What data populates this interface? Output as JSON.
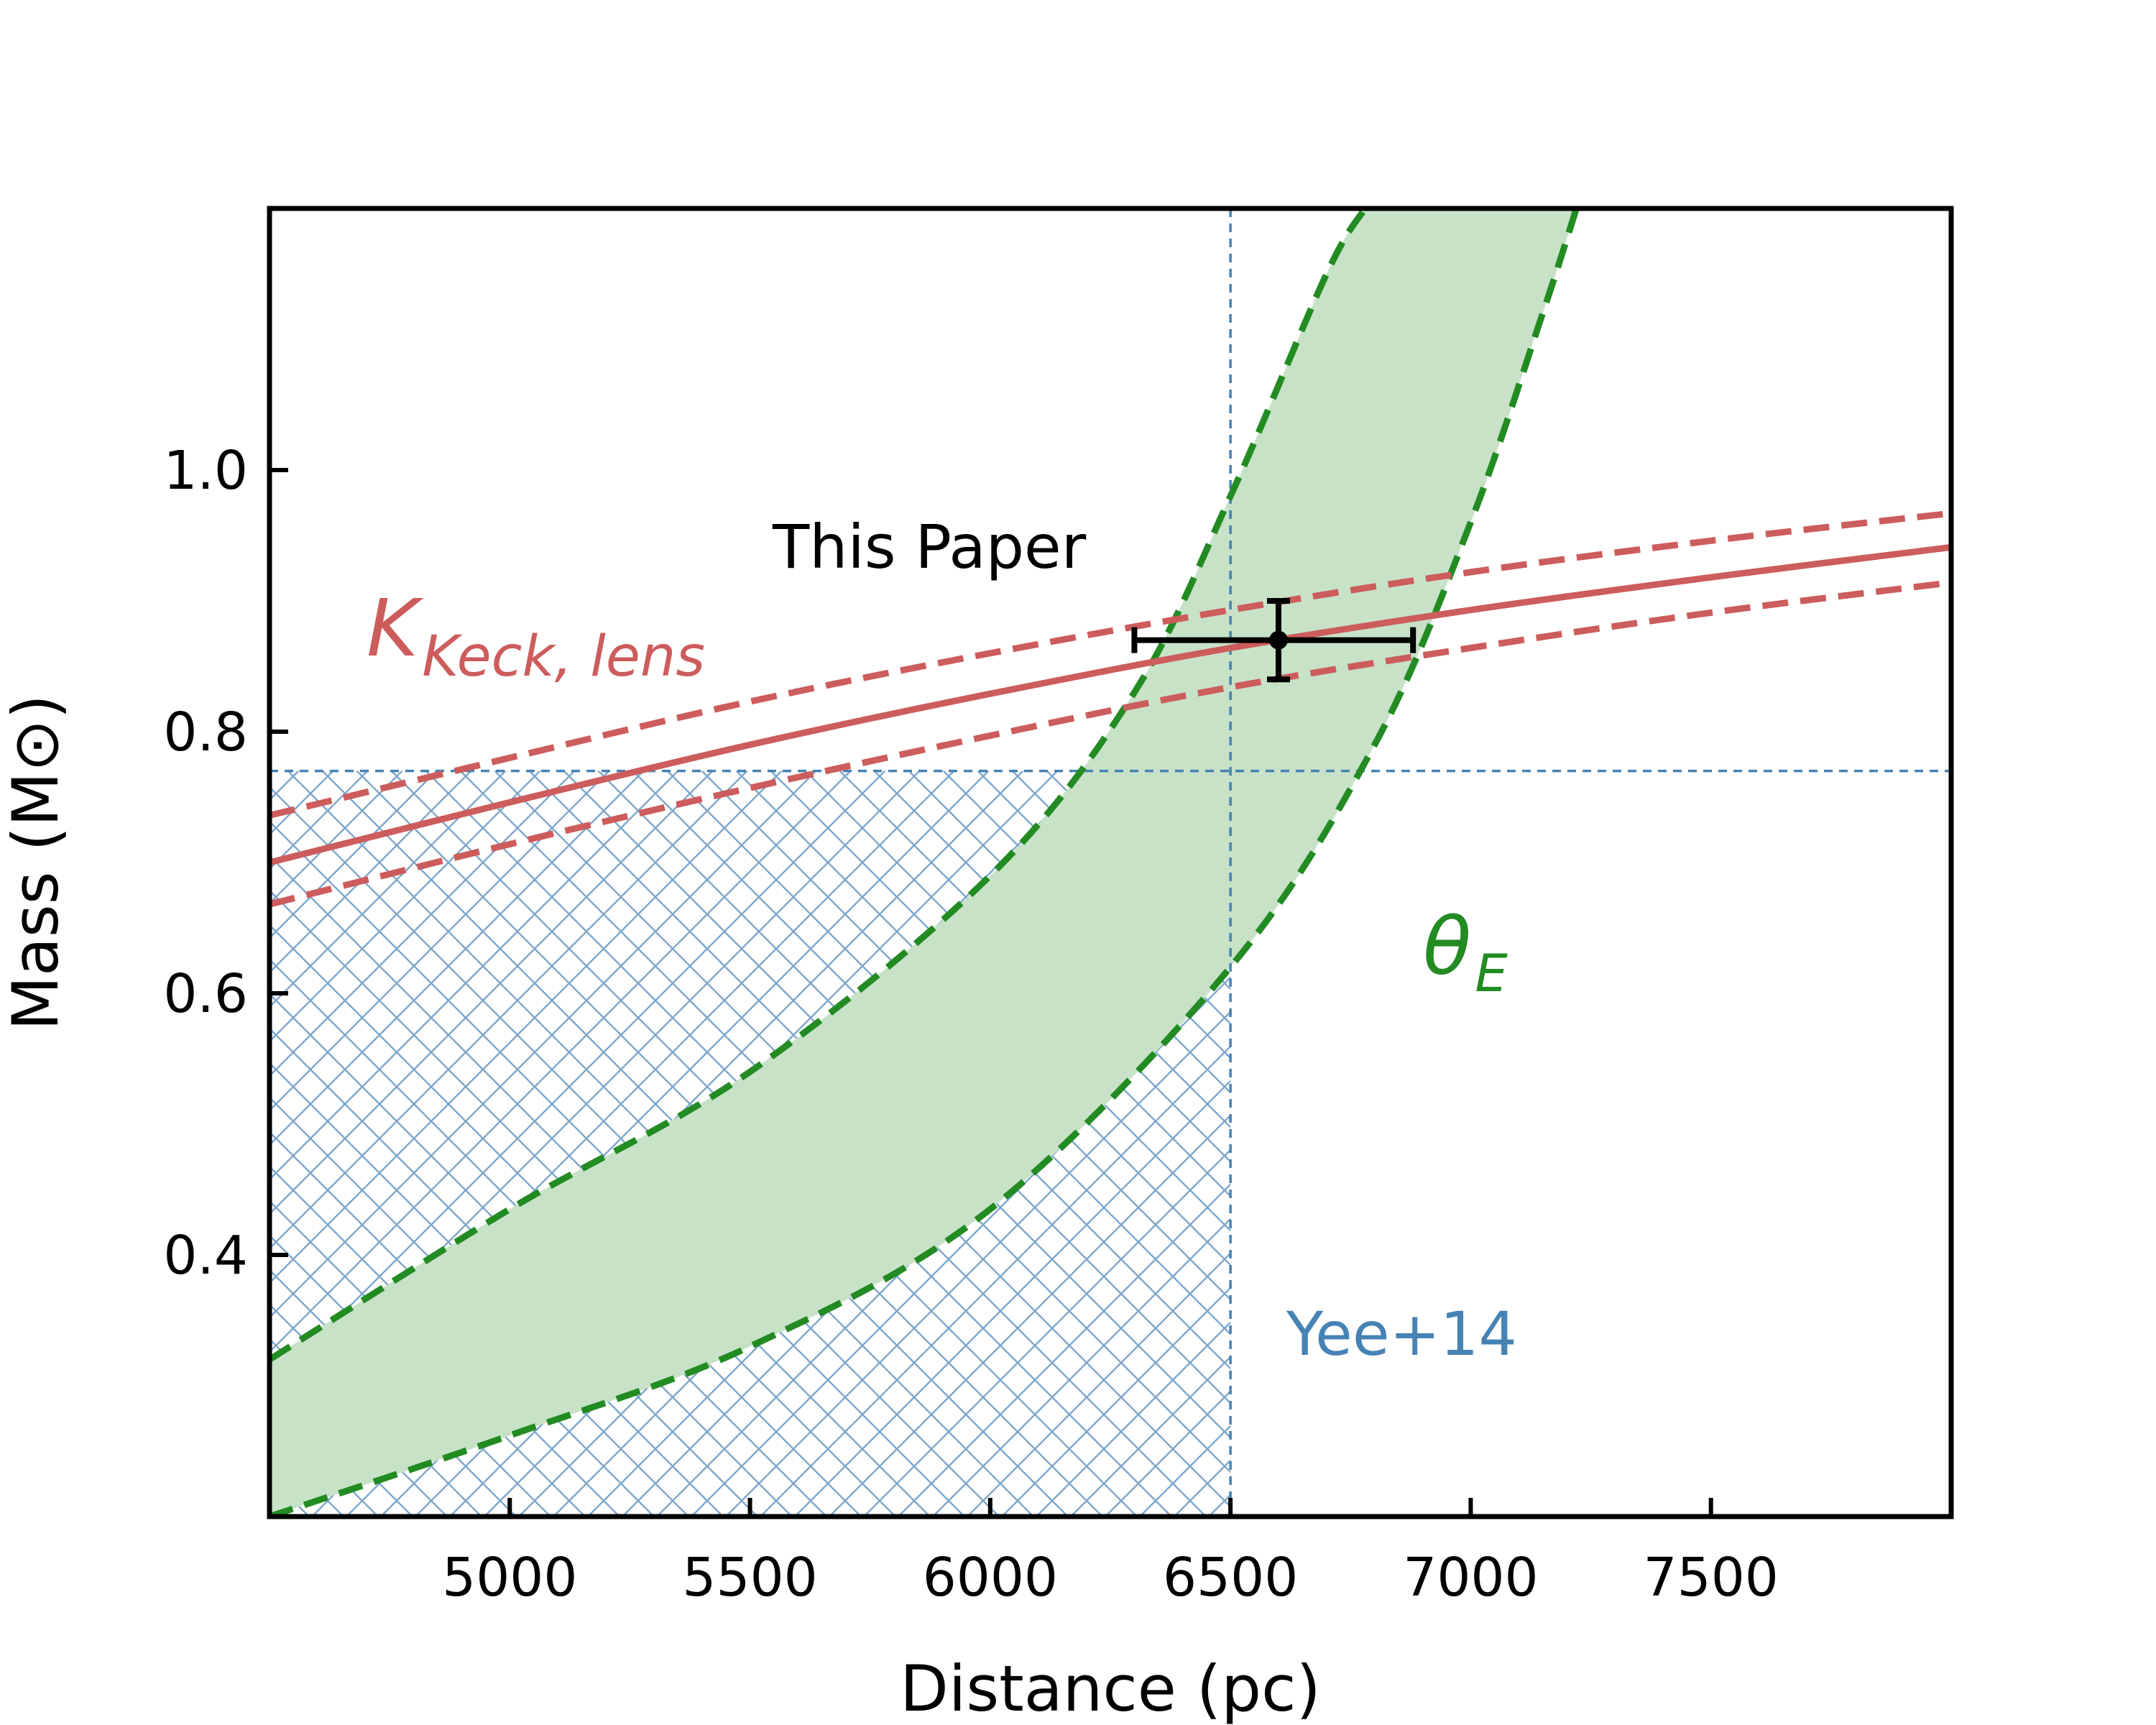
{
  "chart_data": {
    "type": "line",
    "xlabel": "Distance (pc)",
    "ylabel": "Mass (M⊙)",
    "xlim": [
      4500,
      8000
    ],
    "ylim": [
      0.2,
      1.2
    ],
    "xticks": [
      5000,
      5500,
      6000,
      6500,
      7000,
      7500
    ],
    "xtick_labels": [
      "5000",
      "5500",
      "6000",
      "6500",
      "7000",
      "7500"
    ],
    "yticks": [
      0.4,
      0.6,
      0.8,
      1.0
    ],
    "ytick_labels": [
      "0.4",
      "0.6",
      "0.8",
      "1.0"
    ],
    "grid": false,
    "series": [
      {
        "name": "K_Keck,lens",
        "label_main": "K",
        "label_sub": "Keck, lens",
        "color": "#cd5c5c",
        "x": [
          4500,
          5000,
          5500,
          6000,
          6500,
          7000,
          7500,
          8000
        ],
        "central": [
          0.7,
          0.746,
          0.79,
          0.829,
          0.864,
          0.893,
          0.918,
          0.941
        ],
        "upper": [
          0.736,
          0.78,
          0.823,
          0.86,
          0.893,
          0.922,
          0.946,
          0.967
        ],
        "lower": [
          0.668,
          0.714,
          0.757,
          0.797,
          0.834,
          0.864,
          0.891,
          0.914
        ]
      },
      {
        "name": "θ_E",
        "label_main": "θ",
        "label_sub": "E",
        "color": "#228b22",
        "fill_color": "#c8e2c8",
        "upper_x": [
          4500,
          5000,
          5500,
          6000,
          6300,
          6500,
          6700,
          6780
        ],
        "upper_y": [
          0.32,
          0.435,
          0.54,
          0.69,
          0.83,
          0.98,
          1.15,
          1.2
        ],
        "lower_x": [
          4500,
          5000,
          5500,
          6000,
          6500,
          6800,
          7000,
          7150,
          7220
        ],
        "lower_y": [
          0.2,
          0.262,
          0.33,
          0.435,
          0.62,
          0.79,
          0.96,
          1.12,
          1.2
        ]
      }
    ],
    "constraints": {
      "name": "Yee+14",
      "color": "#4682b4",
      "distance_limit": 6500,
      "mass_limit": 0.77
    },
    "measurement": {
      "name": "This Paper",
      "x": 6600,
      "y": 0.87,
      "x_err_low": 300,
      "x_err_high": 280,
      "y_err": 0.03,
      "color": "#000000"
    }
  }
}
